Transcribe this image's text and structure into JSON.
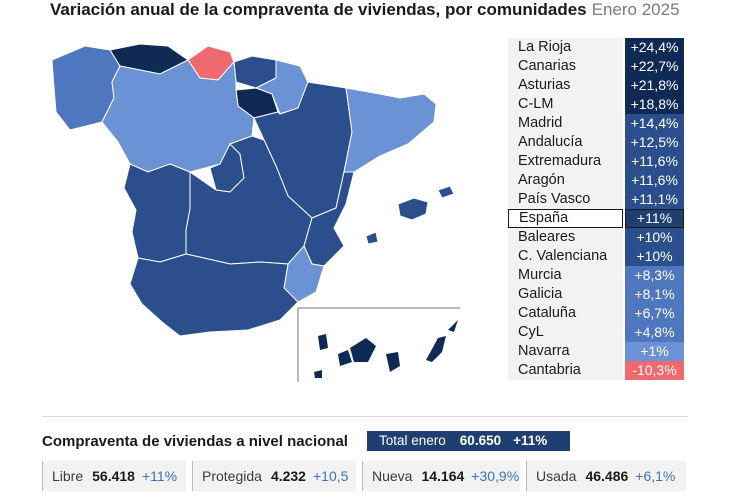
{
  "header": {
    "title": "Variación anual de la compraventa de viviendas, por comunidades",
    "subtitle": "Enero 2025"
  },
  "colors": {
    "dark": "#0f2b55",
    "mid_dark": "#2b4f8c",
    "mid": "#4e77bf",
    "light": "#6a92d4",
    "negative": "#ef6a6e",
    "highlight": "#1f3e72"
  },
  "chart_data": {
    "type": "table",
    "categories": [
      "La Rioja",
      "Canarias",
      "Asturias",
      "C-LM",
      "Madrid",
      "Andalucía",
      "Extremadura",
      "Aragón",
      "País Vasco",
      "España",
      "Baleares",
      "C. Valenciana",
      "Murcia",
      "Galicia",
      "Cataluña",
      "CyL",
      "Navarra",
      "Cantabria"
    ],
    "labels": [
      "+24,4%",
      "+22,7%",
      "+21,8%",
      "+18,8%",
      "+14,4%",
      "+12,5%",
      "+11,6%",
      "+11,6%",
      "+11,1%",
      "+11%",
      "+10%",
      "+10%",
      "+8,3%",
      "+8,1%",
      "+6,7%",
      "+4,8%",
      "+1%",
      "-10,3%"
    ],
    "values": [
      24.4,
      22.7,
      21.8,
      18.8,
      14.4,
      12.5,
      11.6,
      11.6,
      11.1,
      11,
      10,
      10,
      8.3,
      8.1,
      6.7,
      4.8,
      1,
      -10.3
    ],
    "highlight": "España"
  },
  "national": {
    "title": "Compraventa de viviendas a nivel nacional",
    "total_label": "Total enero",
    "total_value": "60.650",
    "total_pct": "+11%",
    "items": [
      {
        "label": "Libre",
        "value": "56.418",
        "pct": "+11%"
      },
      {
        "label": "Protegida",
        "value": "4.232",
        "pct": "+10,5"
      },
      {
        "label": "Nueva",
        "value": "14.164",
        "pct": "+30,9%"
      },
      {
        "label": "Usada",
        "value": "46.486",
        "pct": "+6,1%"
      }
    ]
  }
}
